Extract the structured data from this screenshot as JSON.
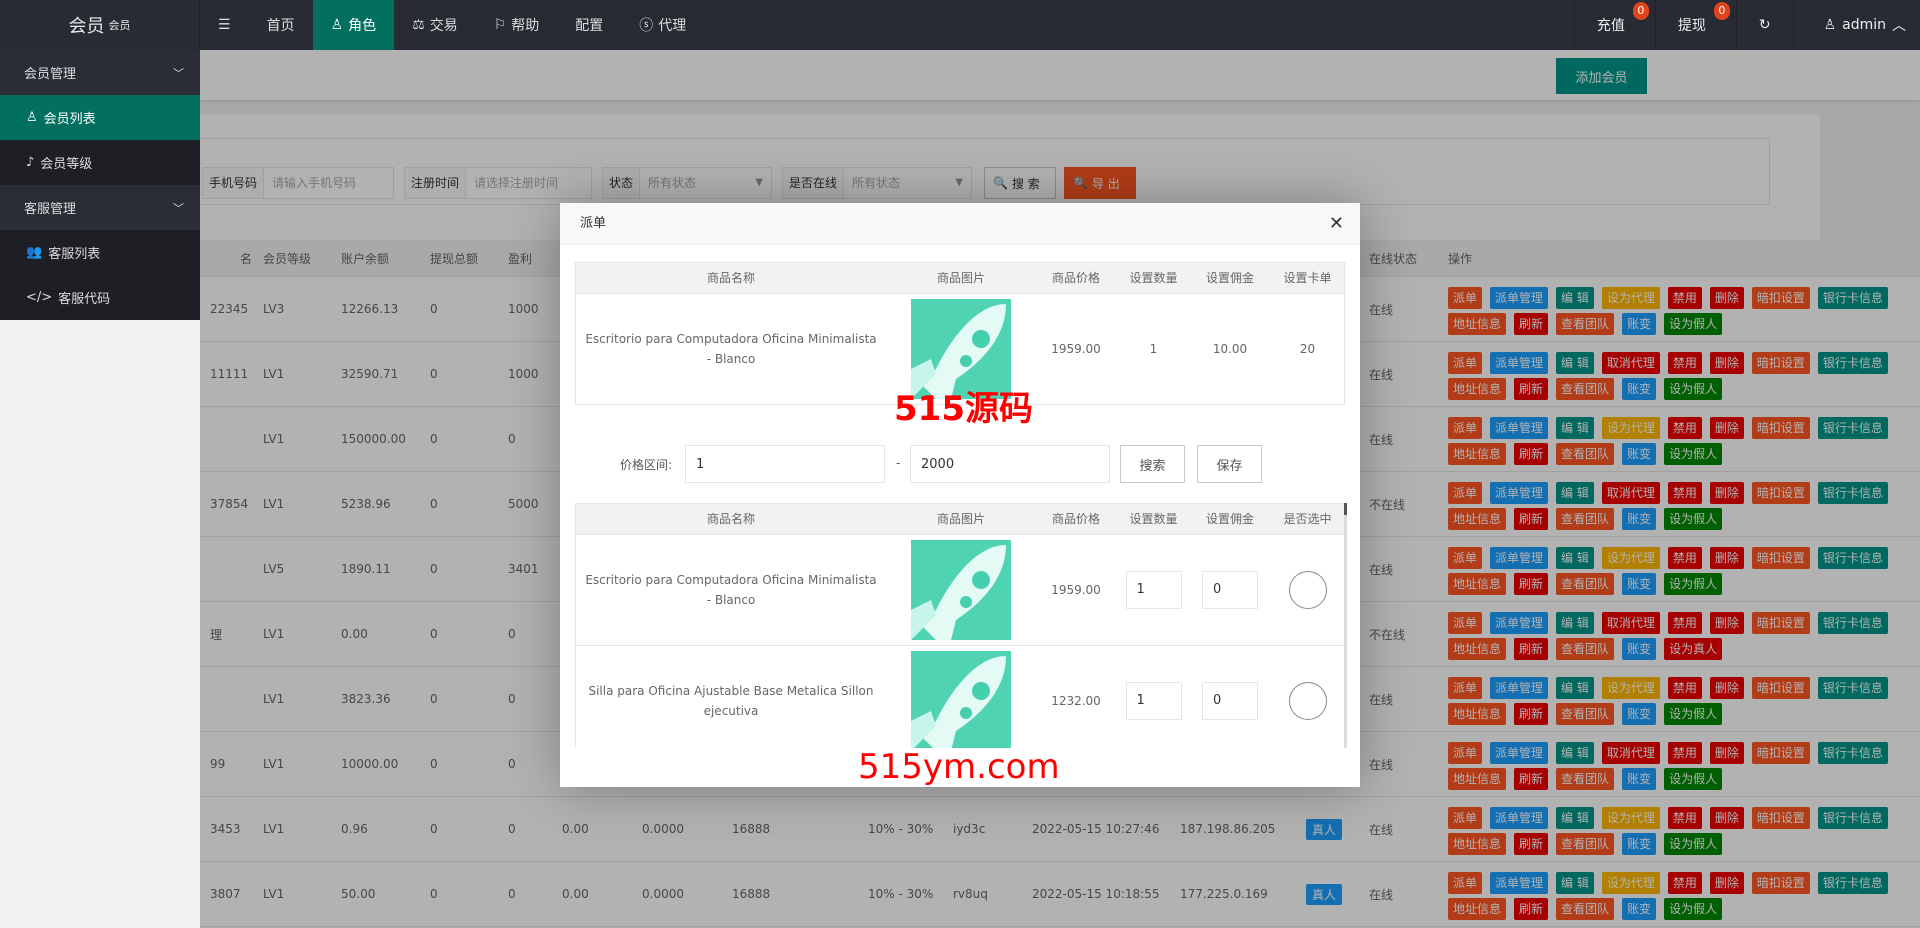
{
  "topbar": {
    "logo": "会员",
    "logo_sup": "会员",
    "nav": [
      {
        "label": "",
        "icon": "menu-fold-icon"
      },
      {
        "label": "首页"
      },
      {
        "label": "角色",
        "icon": "user-icon",
        "active": true
      },
      {
        "label": "交易",
        "icon": "scale-icon"
      },
      {
        "label": "帮助",
        "icon": "flag-icon"
      },
      {
        "label": "配置"
      },
      {
        "label": "代理",
        "icon": "dollar-icon"
      }
    ],
    "recharge": "充值",
    "recharge_count": "0",
    "withdraw": "提现",
    "withdraw_count": "0",
    "user": "admin"
  },
  "sidebar": {
    "items": [
      {
        "label": "会员管理",
        "type": "group"
      },
      {
        "label": "会员列表",
        "active": true
      },
      {
        "label": "会员等级"
      },
      {
        "label": "客服管理",
        "type": "group"
      },
      {
        "label": "客服列表"
      },
      {
        "label": "客服代码"
      }
    ]
  },
  "toolbar": {
    "add_member": "添加会员"
  },
  "filters": {
    "phone_label": "手机号码",
    "phone_placeholder": "请输入手机号码",
    "reg_label": "注册时间",
    "reg_placeholder": "请选择注册时间",
    "status_label": "状态",
    "status_value": "所有状态",
    "online_label": "是否在线",
    "online_value": "所有状态",
    "search": "搜 索",
    "export": "导 出"
  },
  "table": {
    "headers": {
      "name": "名",
      "level": "会员等级",
      "balance": "账户余额",
      "withdraw": "提现总额",
      "profit": "盈利",
      "online": "在线状态",
      "ops": "操作"
    },
    "rows": [
      {
        "name": "22345",
        "level": "LV3",
        "balance": "12266.13",
        "withdraw": "0",
        "profit": "1000",
        "status": "在线",
        "agent": "设为代理",
        "fake": "设为假人"
      },
      {
        "name": "11111",
        "level": "LV1",
        "balance": "32590.71",
        "withdraw": "0",
        "profit": "1000",
        "status": "在线",
        "agent": "取消代理",
        "fake": "设为假人"
      },
      {
        "name": "",
        "level": "LV1",
        "balance": "150000.00",
        "withdraw": "0",
        "profit": "0",
        "status": "在线",
        "agent": "设为代理",
        "fake": "设为假人"
      },
      {
        "name": "37854",
        "level": "LV1",
        "balance": "5238.96",
        "withdraw": "0",
        "profit": "5000",
        "status": "不在线",
        "agent": "取消代理",
        "fake": "设为假人"
      },
      {
        "name": "",
        "level": "LV5",
        "balance": "1890.11",
        "withdraw": "0",
        "profit": "3401",
        "status": "在线",
        "agent": "设为代理",
        "fake": "设为假人"
      },
      {
        "name": "理",
        "level": "LV1",
        "balance": "0.00",
        "withdraw": "0",
        "profit": "0",
        "status": "不在线",
        "agent": "取消代理",
        "fake": "设为真人"
      },
      {
        "name": "",
        "level": "LV1",
        "balance": "3823.36",
        "withdraw": "0",
        "profit": "0",
        "status": "在线",
        "agent": "设为代理",
        "fake": "设为假人"
      },
      {
        "name": "99",
        "level": "LV1",
        "balance": "10000.00",
        "withdraw": "0",
        "profit": "0",
        "status": "在线",
        "agent": "取消代理",
        "fake": "设为假人"
      },
      {
        "name": "3453",
        "level": "LV1",
        "balance": "0.96",
        "withdraw": "0",
        "profit": "0",
        "c1": "0.00",
        "c2": "0.0000",
        "c3": "16888",
        "c4": "10% - 30%",
        "code": "iyd3c",
        "time": "2022-05-15 10:27:46",
        "ip": "187.198.86.205",
        "type": "真人",
        "status": "在线",
        "agent": "设为代理",
        "fake": "设为假人"
      },
      {
        "name": "3807",
        "level": "LV1",
        "balance": "50.00",
        "withdraw": "0",
        "profit": "0",
        "c1": "0.00",
        "c2": "0.0000",
        "c3": "16888",
        "c4": "10% - 30%",
        "code": "rv8uq",
        "time": "2022-05-15 10:18:55",
        "ip": "177.225.0.169",
        "type": "真人",
        "status": "在线",
        "agent": "设为代理",
        "fake": "设为假人"
      }
    ],
    "actions": {
      "dispatch": "派单",
      "dispatch_mgr": "派单管理",
      "edit": "编 辑",
      "ban": "禁用",
      "delete": "删除",
      "hidden_deduct": "暗扣设置",
      "bank": "银行卡信息",
      "address": "地址信息",
      "refresh": "刷新",
      "team": "查看团队",
      "ledger": "账变"
    }
  },
  "colors": {
    "orange": "#ff5722",
    "blue": "#1e9fff",
    "teal": "#009688",
    "yellow": "#ffb800",
    "red": "#f00000",
    "green": "#008800",
    "accent": "#03705f"
  },
  "modal": {
    "title": "派单",
    "top_table": {
      "headers": [
        "商品名称",
        "商品图片",
        "商品价格",
        "设置数量",
        "设置佣金",
        "设置卡单"
      ],
      "row": {
        "name": "Escritorio para Computadora Oficina Minimalista - Blanco",
        "price": "1959.00",
        "qty": "1",
        "commission": "10.00",
        "card": "20"
      }
    },
    "price_label": "价格区间:",
    "price_min": "1",
    "price_sep": "-",
    "price_max": "2000",
    "search": "搜索",
    "save": "保存",
    "list_table": {
      "headers": [
        "商品名称",
        "商品图片",
        "商品价格",
        "设置数量",
        "设置佣金",
        "是否选中"
      ],
      "rows": [
        {
          "name": "Escritorio para Computadora Oficina Minimalista - Blanco",
          "price": "1959.00",
          "qty": "1",
          "commission": "0",
          "selected": false
        },
        {
          "name": "Silla para Oficina Ajustable Base Metalica Sillon ejecutiva",
          "price": "1232.00",
          "qty": "1",
          "commission": "0",
          "selected": false
        }
      ]
    }
  },
  "watermark": {
    "text1": "515源码",
    "text2": "515ym.com"
  }
}
